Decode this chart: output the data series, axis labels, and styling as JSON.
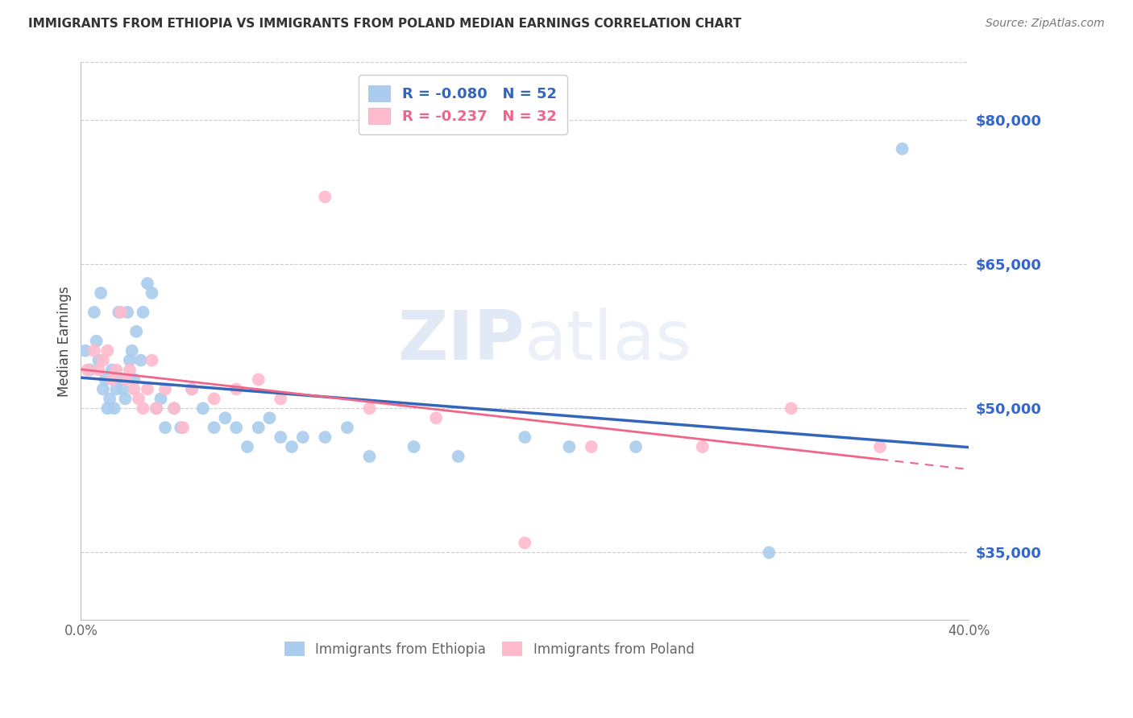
{
  "title": "IMMIGRANTS FROM ETHIOPIA VS IMMIGRANTS FROM POLAND MEDIAN EARNINGS CORRELATION CHART",
  "source": "Source: ZipAtlas.com",
  "ylabel": "Median Earnings",
  "xlim": [
    0.0,
    0.4
  ],
  "ylim": [
    28000,
    86000
  ],
  "yticks": [
    35000,
    50000,
    65000,
    80000
  ],
  "xticks": [
    0.0,
    0.08,
    0.16,
    0.24,
    0.32,
    0.4
  ],
  "xtick_labels": [
    "0.0%",
    "",
    "",
    "",
    "",
    "40.0%"
  ],
  "legend_entries": [
    {
      "label": "R = -0.080   N = 52",
      "color": "#6699CC"
    },
    {
      "label": "R = -0.237   N = 32",
      "color": "#EE6688"
    }
  ],
  "footer_labels": [
    "Immigrants from Ethiopia",
    "Immigrants from Poland"
  ],
  "ethiopia_color": "#AACCEE",
  "poland_color": "#FFBBCC",
  "ethiopia_line_color": "#3366BB",
  "poland_line_color": "#EE6688",
  "ethiopia_x": [
    0.002,
    0.004,
    0.006,
    0.007,
    0.008,
    0.009,
    0.01,
    0.011,
    0.012,
    0.013,
    0.014,
    0.015,
    0.016,
    0.017,
    0.018,
    0.019,
    0.02,
    0.021,
    0.022,
    0.023,
    0.024,
    0.025,
    0.027,
    0.028,
    0.03,
    0.032,
    0.034,
    0.036,
    0.038,
    0.042,
    0.045,
    0.05,
    0.055,
    0.06,
    0.065,
    0.07,
    0.075,
    0.08,
    0.085,
    0.09,
    0.095,
    0.1,
    0.11,
    0.12,
    0.13,
    0.15,
    0.17,
    0.2,
    0.22,
    0.25,
    0.31,
    0.37
  ],
  "ethiopia_y": [
    56000,
    54000,
    60000,
    57000,
    55000,
    62000,
    52000,
    53000,
    50000,
    51000,
    54000,
    50000,
    52000,
    60000,
    53000,
    52000,
    51000,
    60000,
    55000,
    56000,
    53000,
    58000,
    55000,
    60000,
    63000,
    62000,
    50000,
    51000,
    48000,
    50000,
    48000,
    52000,
    50000,
    48000,
    49000,
    48000,
    46000,
    48000,
    49000,
    47000,
    46000,
    47000,
    47000,
    48000,
    45000,
    46000,
    45000,
    47000,
    46000,
    46000,
    35000,
    77000
  ],
  "poland_x": [
    0.003,
    0.006,
    0.008,
    0.01,
    0.012,
    0.014,
    0.016,
    0.018,
    0.02,
    0.022,
    0.024,
    0.026,
    0.028,
    0.03,
    0.032,
    0.034,
    0.038,
    0.042,
    0.046,
    0.05,
    0.06,
    0.07,
    0.08,
    0.09,
    0.11,
    0.13,
    0.16,
    0.2,
    0.23,
    0.28,
    0.32,
    0.36
  ],
  "poland_y": [
    54000,
    56000,
    54000,
    55000,
    56000,
    53000,
    54000,
    60000,
    53000,
    54000,
    52000,
    51000,
    50000,
    52000,
    55000,
    50000,
    52000,
    50000,
    48000,
    52000,
    51000,
    52000,
    53000,
    51000,
    72000,
    50000,
    49000,
    36000,
    46000,
    46000,
    50000,
    46000
  ],
  "poland_data_xlim": 0.35,
  "watermark_text": "ZIP",
  "watermark_text2": "atlas",
  "background_color": "#FFFFFF",
  "grid_color": "#CCCCCC",
  "axis_color": "#BBBBBB",
  "right_axis_color": "#3366CC"
}
